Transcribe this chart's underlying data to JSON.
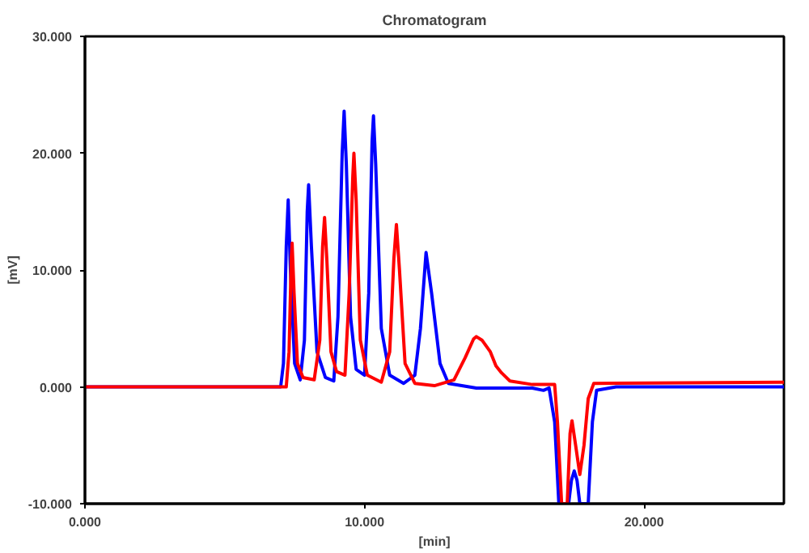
{
  "chart_data": {
    "type": "line",
    "title": "Chromatogram",
    "xlabel": "[min]",
    "ylabel": "[mV]",
    "xlim": [
      0,
      25
    ],
    "ylim": [
      -10,
      30
    ],
    "xticks": [
      {
        "value": 0,
        "label": "0.000"
      },
      {
        "value": 10,
        "label": "10.000"
      },
      {
        "value": 20,
        "label": "20.000"
      }
    ],
    "yticks": [
      {
        "value": -10,
        "label": "-10.000"
      },
      {
        "value": 0,
        "label": "0.000"
      },
      {
        "value": 10,
        "label": "10.000"
      },
      {
        "value": 20,
        "label": "20.000"
      },
      {
        "value": 30,
        "label": "30.000"
      }
    ],
    "grid": false,
    "series": [
      {
        "color": "#0000ff",
        "x": [
          0,
          7.0,
          7.1,
          7.2,
          7.27,
          7.35,
          7.5,
          7.7,
          7.85,
          7.95,
          8.0,
          8.1,
          8.3,
          8.6,
          8.9,
          9.05,
          9.2,
          9.27,
          9.35,
          9.5,
          9.7,
          10.0,
          10.15,
          10.27,
          10.32,
          10.4,
          10.6,
          10.9,
          11.4,
          11.8,
          12.0,
          12.2,
          12.4,
          12.7,
          13.0,
          14,
          16,
          16.4,
          16.6,
          16.8,
          16.95,
          17.3,
          17.4,
          17.5,
          17.6,
          17.7,
          18.0,
          18.15,
          18.3,
          19,
          25
        ],
        "values": [
          0,
          0,
          2,
          12,
          16,
          10,
          2,
          0.6,
          4,
          15,
          17.3,
          12,
          3,
          0.8,
          0.5,
          6,
          20,
          23.6,
          19,
          6,
          1.5,
          1,
          8,
          21,
          23.2,
          19,
          5,
          1,
          0.3,
          1,
          5,
          11.5,
          8,
          2,
          0.3,
          -0.1,
          -0.1,
          -0.3,
          -0.1,
          -3,
          -10,
          -10,
          -8,
          -7.2,
          -8,
          -10,
          -10,
          -3,
          -0.3,
          0,
          0
        ]
      },
      {
        "color": "#ff0000",
        "x": [
          0,
          7.2,
          7.3,
          7.38,
          7.41,
          7.48,
          7.6,
          7.8,
          8.2,
          8.4,
          8.5,
          8.57,
          8.65,
          8.8,
          9.0,
          9.3,
          9.45,
          9.58,
          9.62,
          9.7,
          9.85,
          10.1,
          10.6,
          10.9,
          11.05,
          11.14,
          11.25,
          11.45,
          11.8,
          12.5,
          13.2,
          13.6,
          13.9,
          14.0,
          14.2,
          14.5,
          14.7,
          14.9,
          15.2,
          16,
          16.8,
          16.9,
          17.05,
          17.25,
          17.35,
          17.42,
          17.55,
          17.7,
          17.85,
          18.0,
          18.2,
          25
        ],
        "values": [
          0,
          0,
          3,
          11,
          12.3,
          8,
          2,
          0.8,
          0.6,
          4,
          12,
          14.5,
          11,
          3,
          1.3,
          1,
          8,
          18,
          20,
          16,
          4,
          1,
          0.4,
          3,
          11,
          13.9,
          10,
          2,
          0.3,
          0.1,
          0.6,
          2.5,
          4.1,
          4.3,
          4.0,
          3.0,
          1.8,
          1.2,
          0.5,
          0.2,
          0.2,
          -3,
          -10,
          -10,
          -4,
          -2.9,
          -5,
          -7.5,
          -5,
          -1,
          0.3,
          0.4
        ]
      }
    ]
  }
}
